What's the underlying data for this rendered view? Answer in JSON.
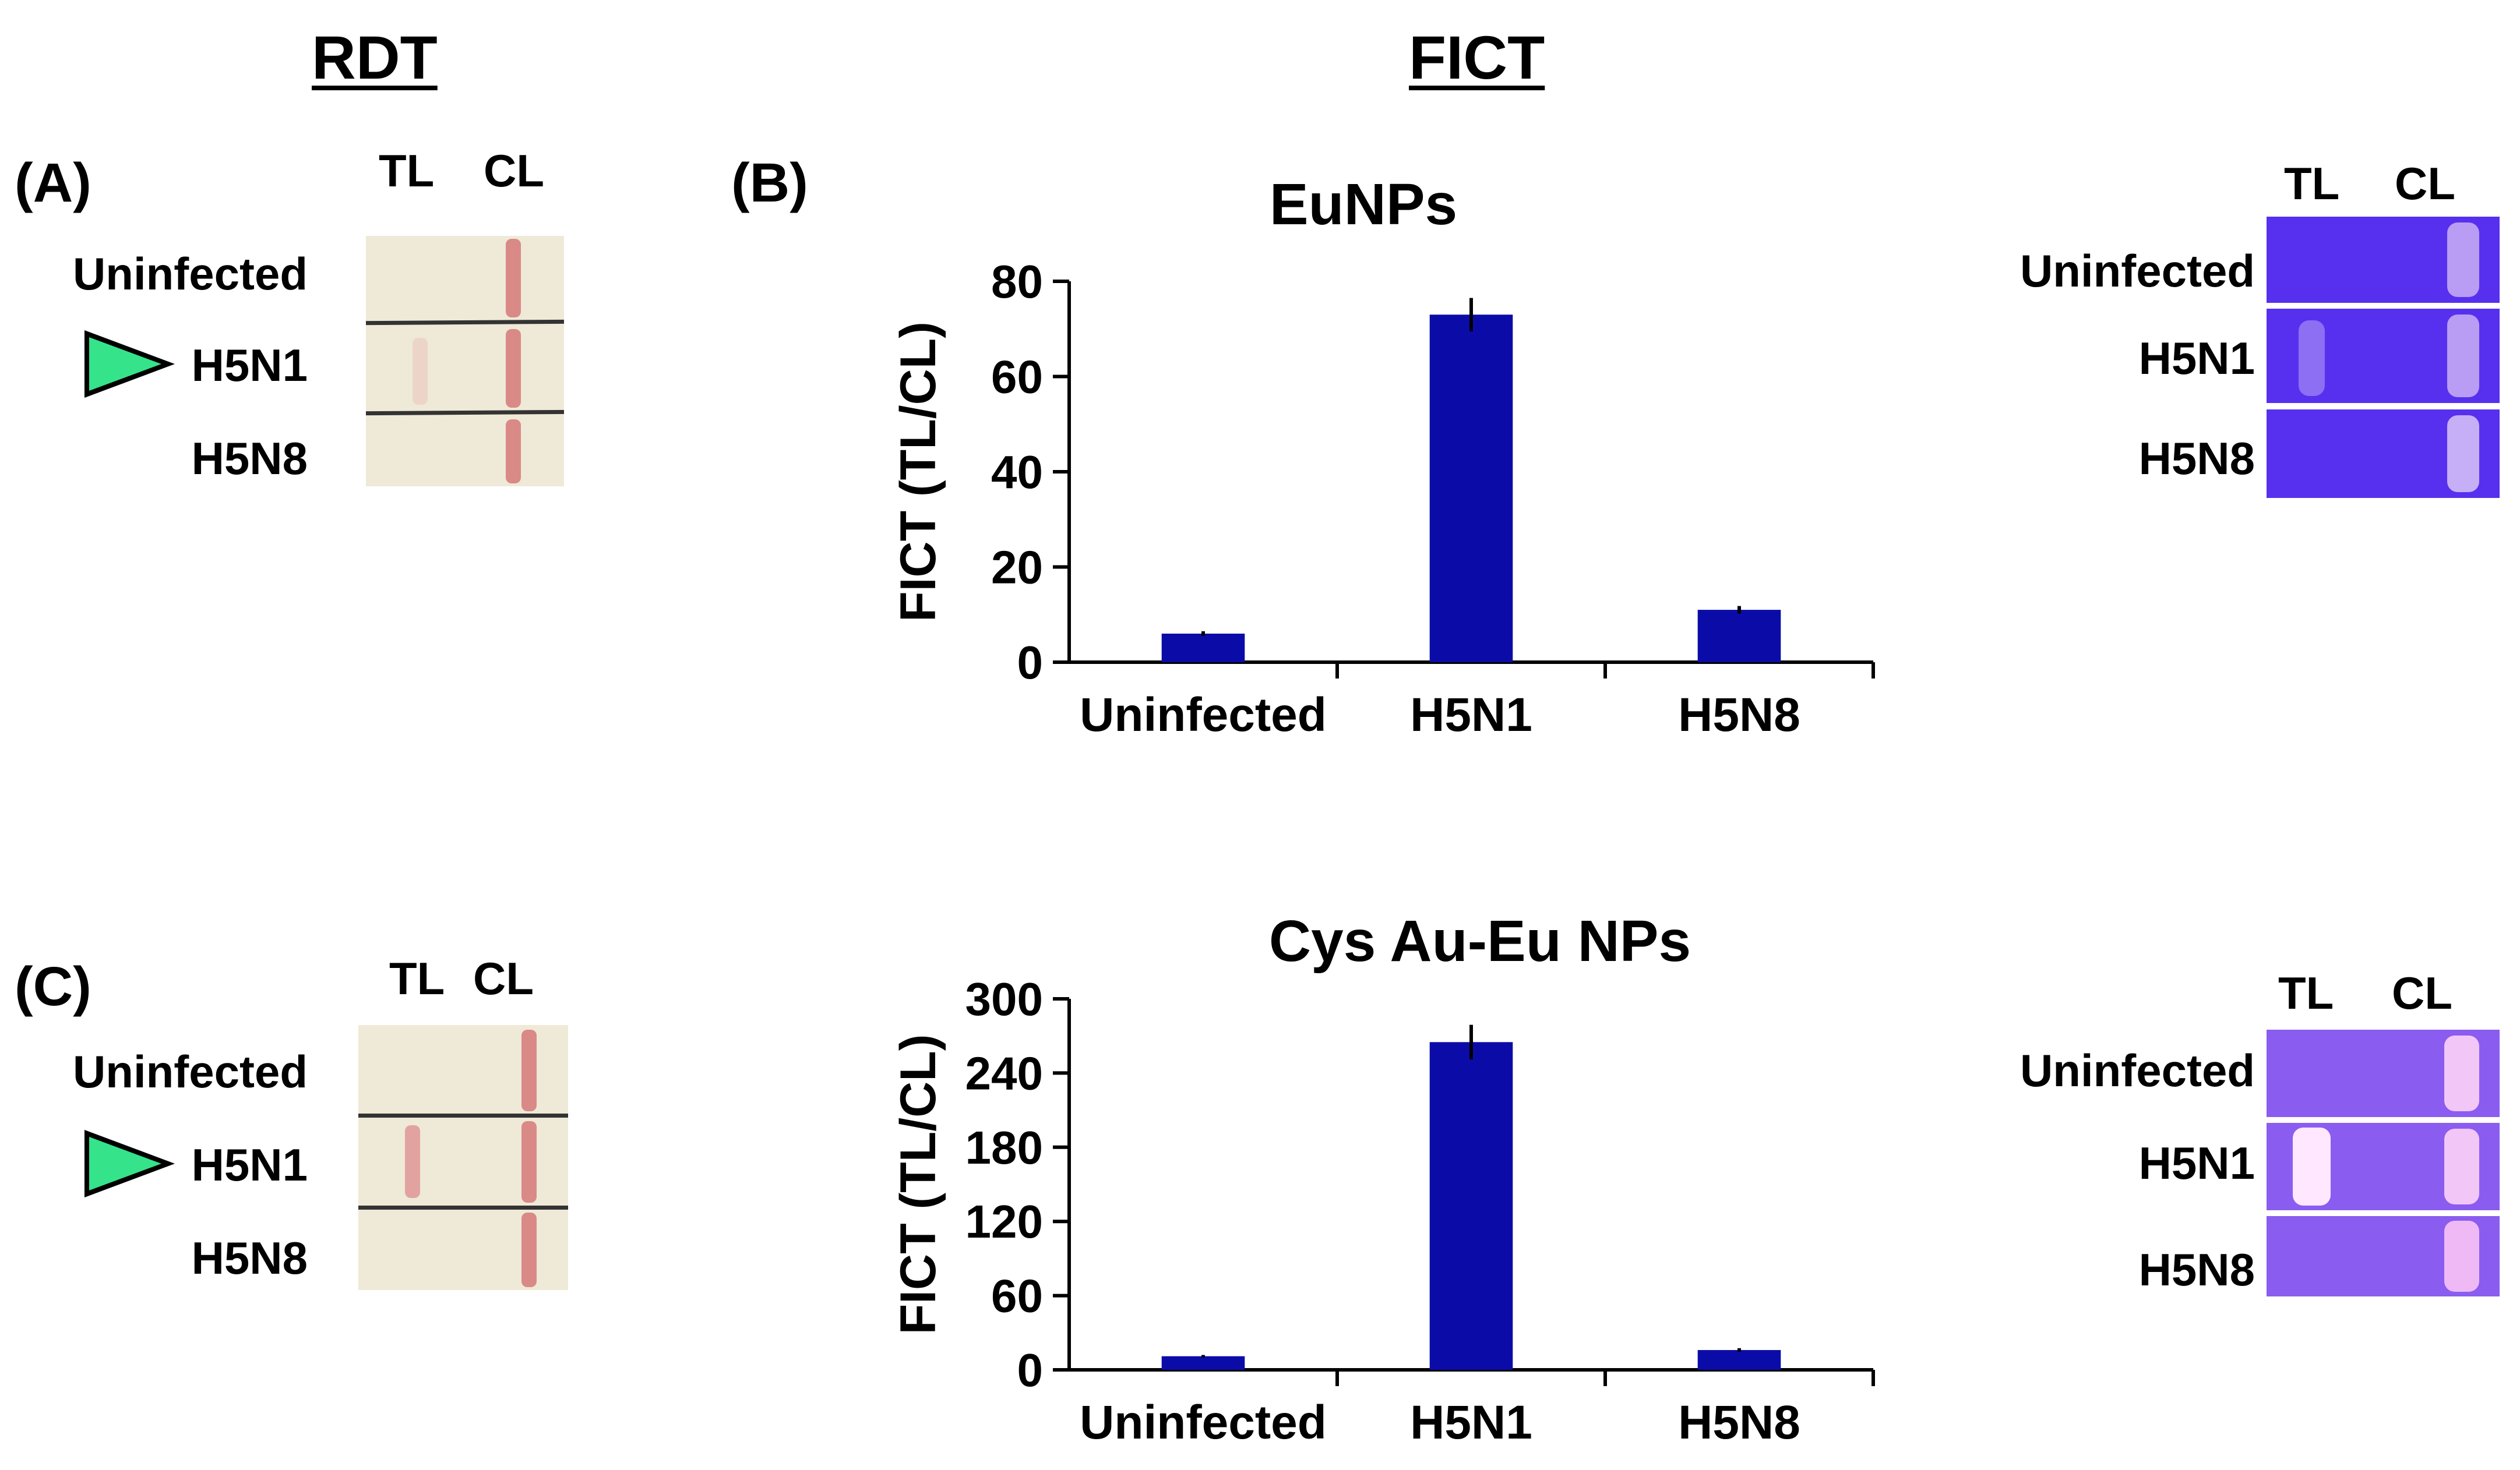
{
  "headers": {
    "rdt": "RDT",
    "fict": "FICT"
  },
  "panels": {
    "a": "(A)",
    "b": "(B)",
    "c": "(C)"
  },
  "lanes": {
    "tl": "TL",
    "cl": "CL"
  },
  "samples": [
    "Uninfected",
    "H5N1",
    "H5N8"
  ],
  "colors": {
    "bar": "#0b0ca8",
    "triangle": "#35e38b",
    "fluor_strip_top": "#5a2ff0",
    "fluor_strip_bottom": "#8a5cf0"
  },
  "chart_data": [
    {
      "type": "bar",
      "title": "EuNPs",
      "categories": [
        "Uninfected",
        "H5N1",
        "H5N8"
      ],
      "values": [
        6,
        73,
        11
      ],
      "errors": [
        0.5,
        3.5,
        0.8
      ],
      "xlabel": "",
      "ylabel": "FICT (TL/CL)",
      "ylim": [
        0,
        80
      ],
      "yticks": [
        0,
        20,
        40,
        60,
        80
      ]
    },
    {
      "type": "bar",
      "title": "Cys Au-Eu NPs",
      "categories": [
        "Uninfected",
        "H5N1",
        "H5N8"
      ],
      "values": [
        11,
        265,
        16
      ],
      "errors": [
        1,
        14,
        1.5
      ],
      "xlabel": "",
      "ylabel": "FICT (TL/CL)",
      "ylim": [
        0,
        300
      ],
      "yticks": [
        0,
        60,
        120,
        180,
        240,
        300
      ]
    }
  ]
}
